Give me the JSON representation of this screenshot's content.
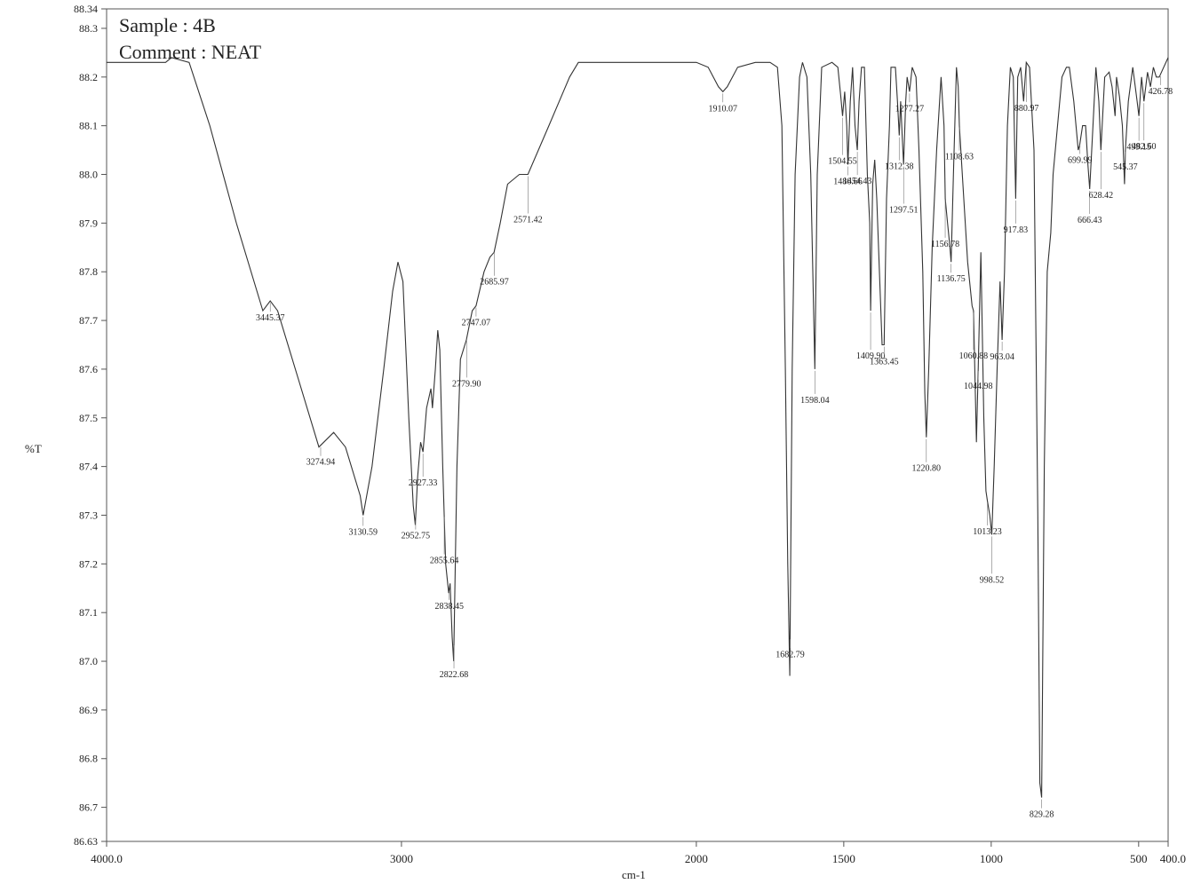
{
  "chart_data": {
    "type": "line",
    "header": [
      "Sample : 4B",
      "Comment : NEAT"
    ],
    "xlabel": "cm-1",
    "ylabel": "%T",
    "xlim": [
      4000.0,
      400.0
    ],
    "ylim": [
      86.63,
      88.34
    ],
    "x_ticks": [
      {
        "value": 4000,
        "label": "4000.0"
      },
      {
        "value": 3000,
        "label": "3000"
      },
      {
        "value": 2000,
        "label": "2000"
      },
      {
        "value": 1500,
        "label": "1500"
      },
      {
        "value": 1000,
        "label": "1000"
      },
      {
        "value": 500,
        "label": "500"
      },
      {
        "value": 400,
        "label": "400.0"
      }
    ],
    "y_ticks": [
      {
        "value": 88.34,
        "label": "88.34"
      },
      {
        "value": 88.3,
        "label": "88.3"
      },
      {
        "value": 88.2,
        "label": "88.2"
      },
      {
        "value": 88.1,
        "label": "88.1"
      },
      {
        "value": 88.0,
        "label": "88.0"
      },
      {
        "value": 87.9,
        "label": "87.9"
      },
      {
        "value": 87.8,
        "label": "87.8"
      },
      {
        "value": 87.7,
        "label": "87.7"
      },
      {
        "value": 87.6,
        "label": "87.6"
      },
      {
        "value": 87.5,
        "label": "87.5"
      },
      {
        "value": 87.4,
        "label": "87.4"
      },
      {
        "value": 87.3,
        "label": "87.3"
      },
      {
        "value": 87.2,
        "label": "87.2"
      },
      {
        "value": 87.1,
        "label": "87.1"
      },
      {
        "value": 87.0,
        "label": "87.0"
      },
      {
        "value": 86.9,
        "label": "86.9"
      },
      {
        "value": 86.8,
        "label": "86.8"
      },
      {
        "value": 86.7,
        "label": "86.7"
      },
      {
        "value": 86.63,
        "label": "86.63"
      }
    ],
    "series": [
      {
        "points": [
          [
            4000,
            88.23
          ],
          [
            3800,
            88.23
          ],
          [
            3780,
            88.24
          ],
          [
            3720,
            88.23
          ],
          [
            3650,
            88.1
          ],
          [
            3560,
            87.9
          ],
          [
            3470,
            87.72
          ],
          [
            3445,
            87.74
          ],
          [
            3420,
            87.72
          ],
          [
            3350,
            87.58
          ],
          [
            3280,
            87.44
          ],
          [
            3230,
            87.47
          ],
          [
            3190,
            87.44
          ],
          [
            3140,
            87.34
          ],
          [
            3130,
            87.3
          ],
          [
            3100,
            87.4
          ],
          [
            3060,
            87.6
          ],
          [
            3030,
            87.76
          ],
          [
            3012,
            87.82
          ],
          [
            2995,
            87.78
          ],
          [
            2975,
            87.5
          ],
          [
            2960,
            87.32
          ],
          [
            2953,
            87.28
          ],
          [
            2945,
            87.38
          ],
          [
            2935,
            87.45
          ],
          [
            2927,
            87.43
          ],
          [
            2915,
            87.52
          ],
          [
            2900,
            87.56
          ],
          [
            2895,
            87.52
          ],
          [
            2885,
            87.6
          ],
          [
            2877,
            87.68
          ],
          [
            2870,
            87.64
          ],
          [
            2860,
            87.4
          ],
          [
            2850,
            87.2
          ],
          [
            2840,
            87.14
          ],
          [
            2835,
            87.16
          ],
          [
            2828,
            87.05
          ],
          [
            2823,
            87.0
          ],
          [
            2812,
            87.4
          ],
          [
            2800,
            87.62
          ],
          [
            2780,
            87.66
          ],
          [
            2760,
            87.72
          ],
          [
            2747,
            87.73
          ],
          [
            2720,
            87.8
          ],
          [
            2700,
            87.83
          ],
          [
            2686,
            87.84
          ],
          [
            2665,
            87.9
          ],
          [
            2640,
            87.98
          ],
          [
            2600,
            88.0
          ],
          [
            2571,
            88.0
          ],
          [
            2500,
            88.1
          ],
          [
            2430,
            88.2
          ],
          [
            2400,
            88.23
          ],
          [
            2300,
            88.23
          ],
          [
            2000,
            88.23
          ],
          [
            1960,
            88.22
          ],
          [
            1925,
            88.18
          ],
          [
            1910,
            88.17
          ],
          [
            1895,
            88.18
          ],
          [
            1860,
            88.22
          ],
          [
            1800,
            88.23
          ],
          [
            1750,
            88.23
          ],
          [
            1725,
            88.22
          ],
          [
            1710,
            88.1
          ],
          [
            1698,
            87.6
          ],
          [
            1690,
            87.2
          ],
          [
            1683,
            86.97
          ],
          [
            1675,
            87.6
          ],
          [
            1665,
            88.0
          ],
          [
            1650,
            88.2
          ],
          [
            1640,
            88.23
          ],
          [
            1625,
            88.2
          ],
          [
            1612,
            88.0
          ],
          [
            1598,
            87.6
          ],
          [
            1590,
            88.0
          ],
          [
            1575,
            88.22
          ],
          [
            1540,
            88.23
          ],
          [
            1520,
            88.22
          ],
          [
            1510,
            88.16
          ],
          [
            1504,
            88.12
          ],
          [
            1497,
            88.17
          ],
          [
            1490,
            88.1
          ],
          [
            1486,
            88.02
          ],
          [
            1478,
            88.15
          ],
          [
            1470,
            88.22
          ],
          [
            1462,
            88.1
          ],
          [
            1454,
            88.05
          ],
          [
            1448,
            88.15
          ],
          [
            1440,
            88.22
          ],
          [
            1430,
            88.22
          ],
          [
            1420,
            88.0
          ],
          [
            1412,
            87.9
          ],
          [
            1409,
            87.72
          ],
          [
            1402,
            87.98
          ],
          [
            1395,
            88.03
          ],
          [
            1388,
            87.95
          ],
          [
            1378,
            87.78
          ],
          [
            1370,
            87.65
          ],
          [
            1363,
            87.65
          ],
          [
            1355,
            87.95
          ],
          [
            1345,
            88.1
          ],
          [
            1340,
            88.22
          ],
          [
            1325,
            88.22
          ],
          [
            1318,
            88.15
          ],
          [
            1312,
            88.08
          ],
          [
            1307,
            88.15
          ],
          [
            1302,
            88.08
          ],
          [
            1297,
            88.02
          ],
          [
            1290,
            88.15
          ],
          [
            1285,
            88.2
          ],
          [
            1277,
            88.17
          ],
          [
            1268,
            88.22
          ],
          [
            1255,
            88.2
          ],
          [
            1245,
            88.05
          ],
          [
            1232,
            87.8
          ],
          [
            1225,
            87.55
          ],
          [
            1220,
            87.46
          ],
          [
            1212,
            87.6
          ],
          [
            1200,
            87.85
          ],
          [
            1185,
            88.05
          ],
          [
            1170,
            88.2
          ],
          [
            1160,
            88.1
          ],
          [
            1156,
            87.95
          ],
          [
            1148,
            87.9
          ],
          [
            1140,
            87.85
          ],
          [
            1136,
            87.82
          ],
          [
            1128,
            88.0
          ],
          [
            1118,
            88.22
          ],
          [
            1112,
            88.18
          ],
          [
            1108,
            88.1
          ],
          [
            1098,
            88.0
          ],
          [
            1080,
            87.82
          ],
          [
            1065,
            87.73
          ],
          [
            1060,
            87.72
          ],
          [
            1050,
            87.45
          ],
          [
            1044,
            87.6
          ],
          [
            1035,
            87.84
          ],
          [
            1025,
            87.5
          ],
          [
            1018,
            87.35
          ],
          [
            1013,
            87.33
          ],
          [
            1005,
            87.3
          ],
          [
            998,
            87.26
          ],
          [
            990,
            87.4
          ],
          [
            980,
            87.6
          ],
          [
            970,
            87.78
          ],
          [
            963,
            87.66
          ],
          [
            955,
            87.8
          ],
          [
            945,
            88.1
          ],
          [
            935,
            88.22
          ],
          [
            925,
            88.2
          ],
          [
            917,
            87.95
          ],
          [
            910,
            88.2
          ],
          [
            900,
            88.22
          ],
          [
            890,
            88.15
          ],
          [
            881,
            88.23
          ],
          [
            870,
            88.22
          ],
          [
            855,
            88.05
          ],
          [
            842,
            87.3
          ],
          [
            835,
            86.75
          ],
          [
            829,
            86.72
          ],
          [
            820,
            87.4
          ],
          [
            810,
            87.8
          ],
          [
            798,
            87.88
          ],
          [
            790,
            88.0
          ],
          [
            775,
            88.1
          ],
          [
            760,
            88.2
          ],
          [
            745,
            88.22
          ],
          [
            735,
            88.22
          ],
          [
            720,
            88.15
          ],
          [
            705,
            88.05
          ],
          [
            700,
            88.06
          ],
          [
            690,
            88.1
          ],
          [
            680,
            88.1
          ],
          [
            672,
            88.02
          ],
          [
            666,
            87.97
          ],
          [
            655,
            88.1
          ],
          [
            645,
            88.22
          ],
          [
            635,
            88.15
          ],
          [
            628,
            88.05
          ],
          [
            615,
            88.2
          ],
          [
            600,
            88.21
          ],
          [
            590,
            88.18
          ],
          [
            580,
            88.12
          ],
          [
            575,
            88.2
          ],
          [
            565,
            88.16
          ],
          [
            555,
            88.1
          ],
          [
            548,
            87.98
          ],
          [
            545,
            88.05
          ],
          [
            535,
            88.15
          ],
          [
            520,
            88.22
          ],
          [
            505,
            88.15
          ],
          [
            499,
            88.12
          ],
          [
            490,
            88.2
          ],
          [
            482,
            88.15
          ],
          [
            470,
            88.21
          ],
          [
            460,
            88.18
          ],
          [
            450,
            88.22
          ],
          [
            440,
            88.2
          ],
          [
            430,
            88.2
          ],
          [
            415,
            88.22
          ],
          [
            400,
            88.24
          ]
        ]
      }
    ],
    "annotations": [
      {
        "x": 3445,
        "label": "3445.37"
      },
      {
        "x": 3274,
        "label": "3274.94"
      },
      {
        "x": 3130,
        "label": "3130.59"
      },
      {
        "x": 2952,
        "label": "2952.75"
      },
      {
        "x": 2927,
        "label": "2927.33"
      },
      {
        "x": 2855,
        "label": "2855.64"
      },
      {
        "x": 2838,
        "label": "2838.45"
      },
      {
        "x": 2822,
        "label": "2822.68"
      },
      {
        "x": 2779,
        "label": "2779.90"
      },
      {
        "x": 2747,
        "label": "2747.07"
      },
      {
        "x": 2685,
        "label": "2685.97"
      },
      {
        "x": 2571,
        "label": "2571.42"
      },
      {
        "x": 1910,
        "label": "1910.07"
      },
      {
        "x": 1682,
        "label": "1682.79"
      },
      {
        "x": 1598,
        "label": "1598.04"
      },
      {
        "x": 1504,
        "label": "1504.55"
      },
      {
        "x": 1486,
        "label": "1486.66"
      },
      {
        "x": 1454,
        "label": "1454.43"
      },
      {
        "x": 1409,
        "label": "1409.90"
      },
      {
        "x": 1363,
        "label": "1363.45"
      },
      {
        "x": 1312,
        "label": "1312.38"
      },
      {
        "x": 1297,
        "label": "1297.51"
      },
      {
        "x": 1277,
        "label": "1277.27"
      },
      {
        "x": 1220,
        "label": "1220.80"
      },
      {
        "x": 1156,
        "label": "1156.78"
      },
      {
        "x": 1136,
        "label": "1136.75"
      },
      {
        "x": 1108,
        "label": "1108.63"
      },
      {
        "x": 1060,
        "label": "1060.88"
      },
      {
        "x": 1044,
        "label": "1044.98"
      },
      {
        "x": 1013,
        "label": "1013.23"
      },
      {
        "x": 998,
        "label": "998.52"
      },
      {
        "x": 963,
        "label": "963.04"
      },
      {
        "x": 917,
        "label": "917.83"
      },
      {
        "x": 880,
        "label": "880.97"
      },
      {
        "x": 829,
        "label": "829.28"
      },
      {
        "x": 699,
        "label": "699.99"
      },
      {
        "x": 666,
        "label": "666.43"
      },
      {
        "x": 628,
        "label": "628.42"
      },
      {
        "x": 545,
        "label": "545.37"
      },
      {
        "x": 499,
        "label": "499.15"
      },
      {
        "x": 482,
        "label": "482.60"
      },
      {
        "x": 426,
        "label": "426.78"
      }
    ]
  }
}
